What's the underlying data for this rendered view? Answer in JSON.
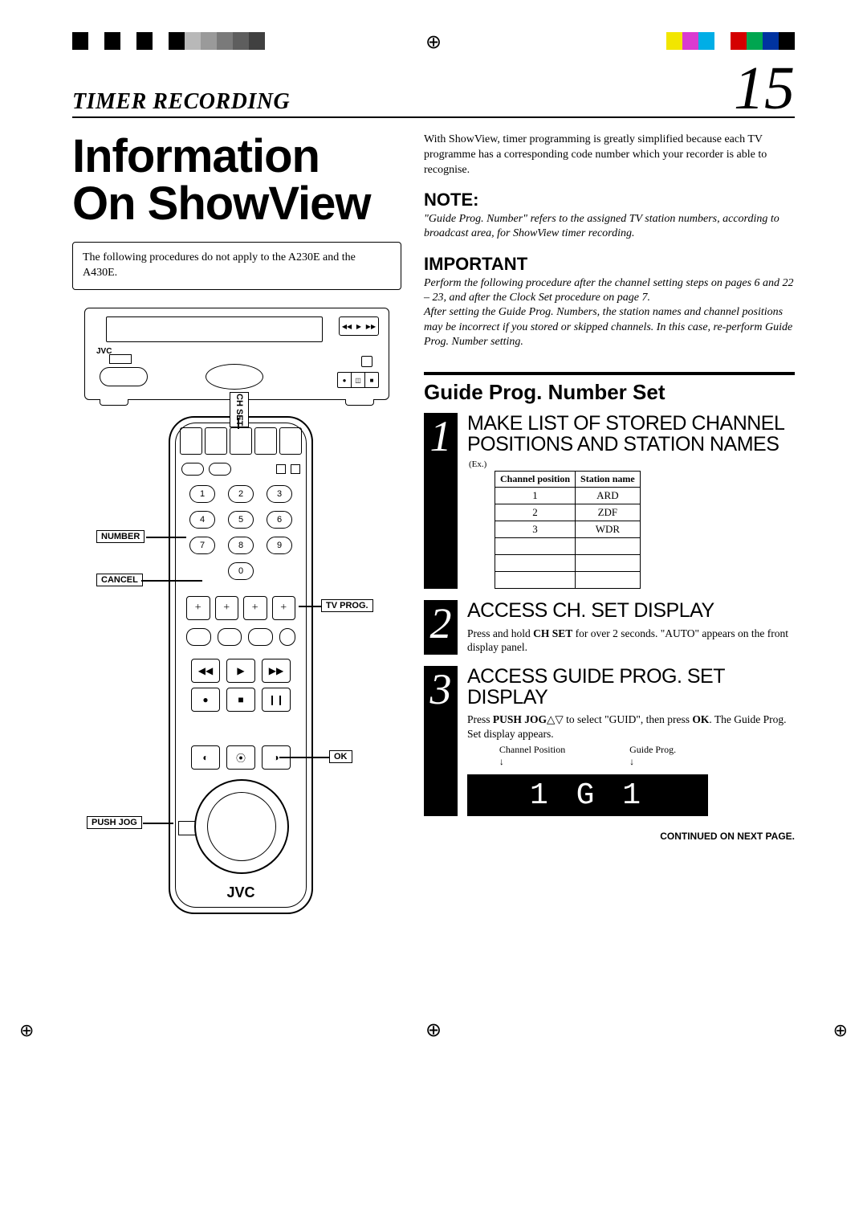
{
  "reg_marks": {
    "left_colors": [
      "#000000",
      "#ffffff",
      "#000000",
      "#ffffff",
      "#000000",
      "#ffffff",
      "#000000",
      "#b8b8b8",
      "#9a9a9a",
      "#7a7a7a",
      "#5e5e5e",
      "#404040"
    ],
    "right_colors": [
      "#f2e600",
      "#d93bd0",
      "#00aee6",
      "#ffffff",
      "#d40000",
      "#00a650",
      "#0033a0",
      "#000000"
    ]
  },
  "header": {
    "section": "TIMER RECORDING",
    "page_number": "15"
  },
  "left": {
    "main_title_l1": "Information",
    "main_title_l2": "On ShowView",
    "note_box": "The following procedures do not apply to the A230E and the A430E.",
    "vcr_logo": "JVC",
    "remote_logo": "JVC",
    "callouts": {
      "ch_set": "CH SET",
      "number": "NUMBER",
      "cancel": "CANCEL",
      "tv_prog": "TV PROG.",
      "ok": "OK",
      "push_jog": "PUSH JOG"
    },
    "numpad": [
      "1",
      "2",
      "3",
      "4",
      "5",
      "6",
      "7",
      "8",
      "9",
      "0"
    ]
  },
  "right": {
    "intro": "With ShowView, timer programming is greatly simplified because each TV programme has a corresponding code number which your recorder is able to recognise.",
    "note_h": "NOTE:",
    "note_body": "\"Guide Prog. Number\" refers to the assigned TV station numbers, according to broadcast area, for ShowView timer recording.",
    "imp_h": "IMPORTANT",
    "imp_l1": "Perform the following procedure after the channel setting steps on pages 6 and 22 – 23, and after the Clock Set procedure on page 7.",
    "imp_l2": "After setting the Guide Prog. Numbers, the station names and channel positions may be incorrect if you stored or skipped channels. In this case, re-perform Guide Prog. Number setting.",
    "gpns": "Guide Prog. Number Set",
    "step1": {
      "num": "1",
      "title": "MAKE LIST OF STORED CHANNEL POSITIONS AND STATION NAMES",
      "ex": "(Ex.)",
      "table": {
        "h1": "Channel position",
        "h2": "Station name",
        "rows": [
          [
            "1",
            "ARD"
          ],
          [
            "2",
            "ZDF"
          ],
          [
            "3",
            "WDR"
          ],
          [
            "",
            ""
          ],
          [
            "",
            ""
          ],
          [
            "",
            ""
          ]
        ]
      }
    },
    "step2": {
      "num": "2",
      "title": "ACCESS CH. SET DISPLAY",
      "text_a": "Press and hold ",
      "text_b": "CH SET",
      "text_c": " for over 2 seconds. \"AUTO\" appears on the front display panel."
    },
    "step3": {
      "num": "3",
      "title": "ACCESS GUIDE PROG. SET DISPLAY",
      "text_a": "Press ",
      "text_b": "PUSH JOG",
      "text_c": "△▽ to select \"GUID\", then press ",
      "text_d": "OK",
      "text_e": ". The Guide Prog. Set display appears.",
      "label_cp": "Channel Position",
      "label_gp": "Guide Prog.",
      "arrow": "↓",
      "display_val": "1 G 1"
    },
    "continued": "CONTINUED ON NEXT PAGE."
  }
}
